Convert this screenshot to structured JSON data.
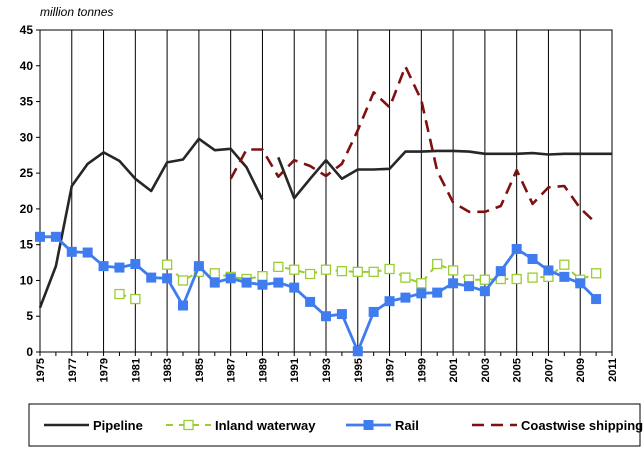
{
  "chart_data": {
    "type": "line",
    "unit_label": "million tonnes",
    "ylim": [
      0,
      45
    ],
    "yticks": [
      "0",
      "5",
      "10",
      "15",
      "20",
      "25",
      "30",
      "35",
      "40",
      "45"
    ],
    "xlim": [
      1975,
      2011
    ],
    "xticks": [
      "1975",
      "1977",
      "1979",
      "1981",
      "1983",
      "1985",
      "1987",
      "1989",
      "1991",
      "1993",
      "1995",
      "1997",
      "1999",
      "2001",
      "2003",
      "2005",
      "2007",
      "2009",
      "2011"
    ],
    "grid": "vertical",
    "legend_position": "bottom",
    "series": [
      {
        "name": "Pipeline",
        "color": "#262626",
        "style": "solid",
        "marker": "none",
        "x": [
          1975,
          1976,
          1977,
          1978,
          1979,
          1980,
          1981,
          1982,
          1983,
          1984,
          1985,
          1986,
          1987,
          1988,
          1989,
          null,
          1990,
          1991,
          1992,
          1993,
          1994,
          1995,
          1996,
          1997,
          1998,
          1999,
          2000,
          2001,
          2002,
          2003,
          2004,
          2005,
          2006,
          2007,
          2008,
          2009,
          2010,
          2011
        ],
        "values": [
          6.2,
          12,
          23.2,
          26.3,
          27.9,
          26.7,
          24.2,
          22.5,
          26.5,
          26.9,
          29.8,
          28.2,
          28.4,
          25.8,
          21.3,
          null,
          27.2,
          21.5,
          24.2,
          26.8,
          24.2,
          25.5,
          25.5,
          25.6,
          28,
          28,
          28.1,
          28.1,
          28,
          27.7,
          27.7,
          27.7,
          27.8,
          27.6,
          27.7,
          27.7,
          27.7,
          27.7
        ]
      },
      {
        "name": "Inland waterway",
        "color": "#9acd32",
        "style": "dashed",
        "marker": "open-square",
        "x": [
          1980,
          1981,
          1982,
          1983,
          1984,
          1985,
          1986,
          1987,
          1988,
          1989,
          1990,
          1991,
          1992,
          1993,
          1994,
          1995,
          1996,
          1997,
          1998,
          1999,
          2000,
          2001,
          2002,
          2003,
          2004,
          2005,
          2006,
          2007,
          2008,
          2009,
          2010
        ],
        "values": [
          8.1,
          7.4,
          null,
          12.2,
          10,
          11.2,
          11,
          10.5,
          10.2,
          10.6,
          11.9,
          11.5,
          10.9,
          11.5,
          11.3,
          11.2,
          11.2,
          11.6,
          10.4,
          9.6,
          12.3,
          11.4,
          10.1,
          10.1,
          10.2,
          10.2,
          10.4,
          10.5,
          12.2,
          10.1,
          11
        ]
      },
      {
        "name": "Rail",
        "color": "#3f7cf0",
        "style": "solid",
        "marker": "filled-square",
        "x": [
          1975,
          1976,
          1977,
          1978,
          1979,
          1980,
          1981,
          1982,
          1983,
          1984,
          1985,
          1986,
          1987,
          1988,
          1989,
          1990,
          1991,
          1992,
          1993,
          1994,
          1995,
          1996,
          1997,
          1998,
          1999,
          2000,
          2001,
          2002,
          2003,
          2004,
          2005,
          2006,
          2007,
          2008,
          2009,
          2010
        ],
        "values": [
          16.1,
          16.1,
          14,
          13.9,
          12,
          11.8,
          12.3,
          10.4,
          10.3,
          6.5,
          12,
          9.7,
          10.3,
          9.7,
          9.4,
          9.7,
          9,
          7,
          5,
          5.3,
          0.1,
          5.6,
          7.1,
          7.6,
          8.2,
          8.3,
          9.6,
          9.2,
          8.5,
          11.3,
          14.4,
          13,
          11.4,
          10.5,
          9.6,
          7.4
        ]
      },
      {
        "name": "Coastwise shipping",
        "color": "#7f1010",
        "style": "dashed",
        "marker": "none",
        "x": [
          1987,
          1988,
          1989,
          1990,
          1991,
          1992,
          1993,
          1994,
          1995,
          1996,
          1997,
          1998,
          1999,
          2000,
          2001,
          2002,
          2003,
          2004,
          2005,
          2006,
          2007,
          2008,
          2009,
          2010
        ],
        "values": [
          24.2,
          28.3,
          28.3,
          24.5,
          26.8,
          26,
          24.6,
          26.3,
          31,
          36.3,
          34.2,
          39.9,
          35.2,
          25.3,
          20.9,
          19.6,
          19.6,
          20.4,
          25.4,
          20.7,
          23,
          23.2,
          20.1,
          18
        ]
      }
    ]
  }
}
